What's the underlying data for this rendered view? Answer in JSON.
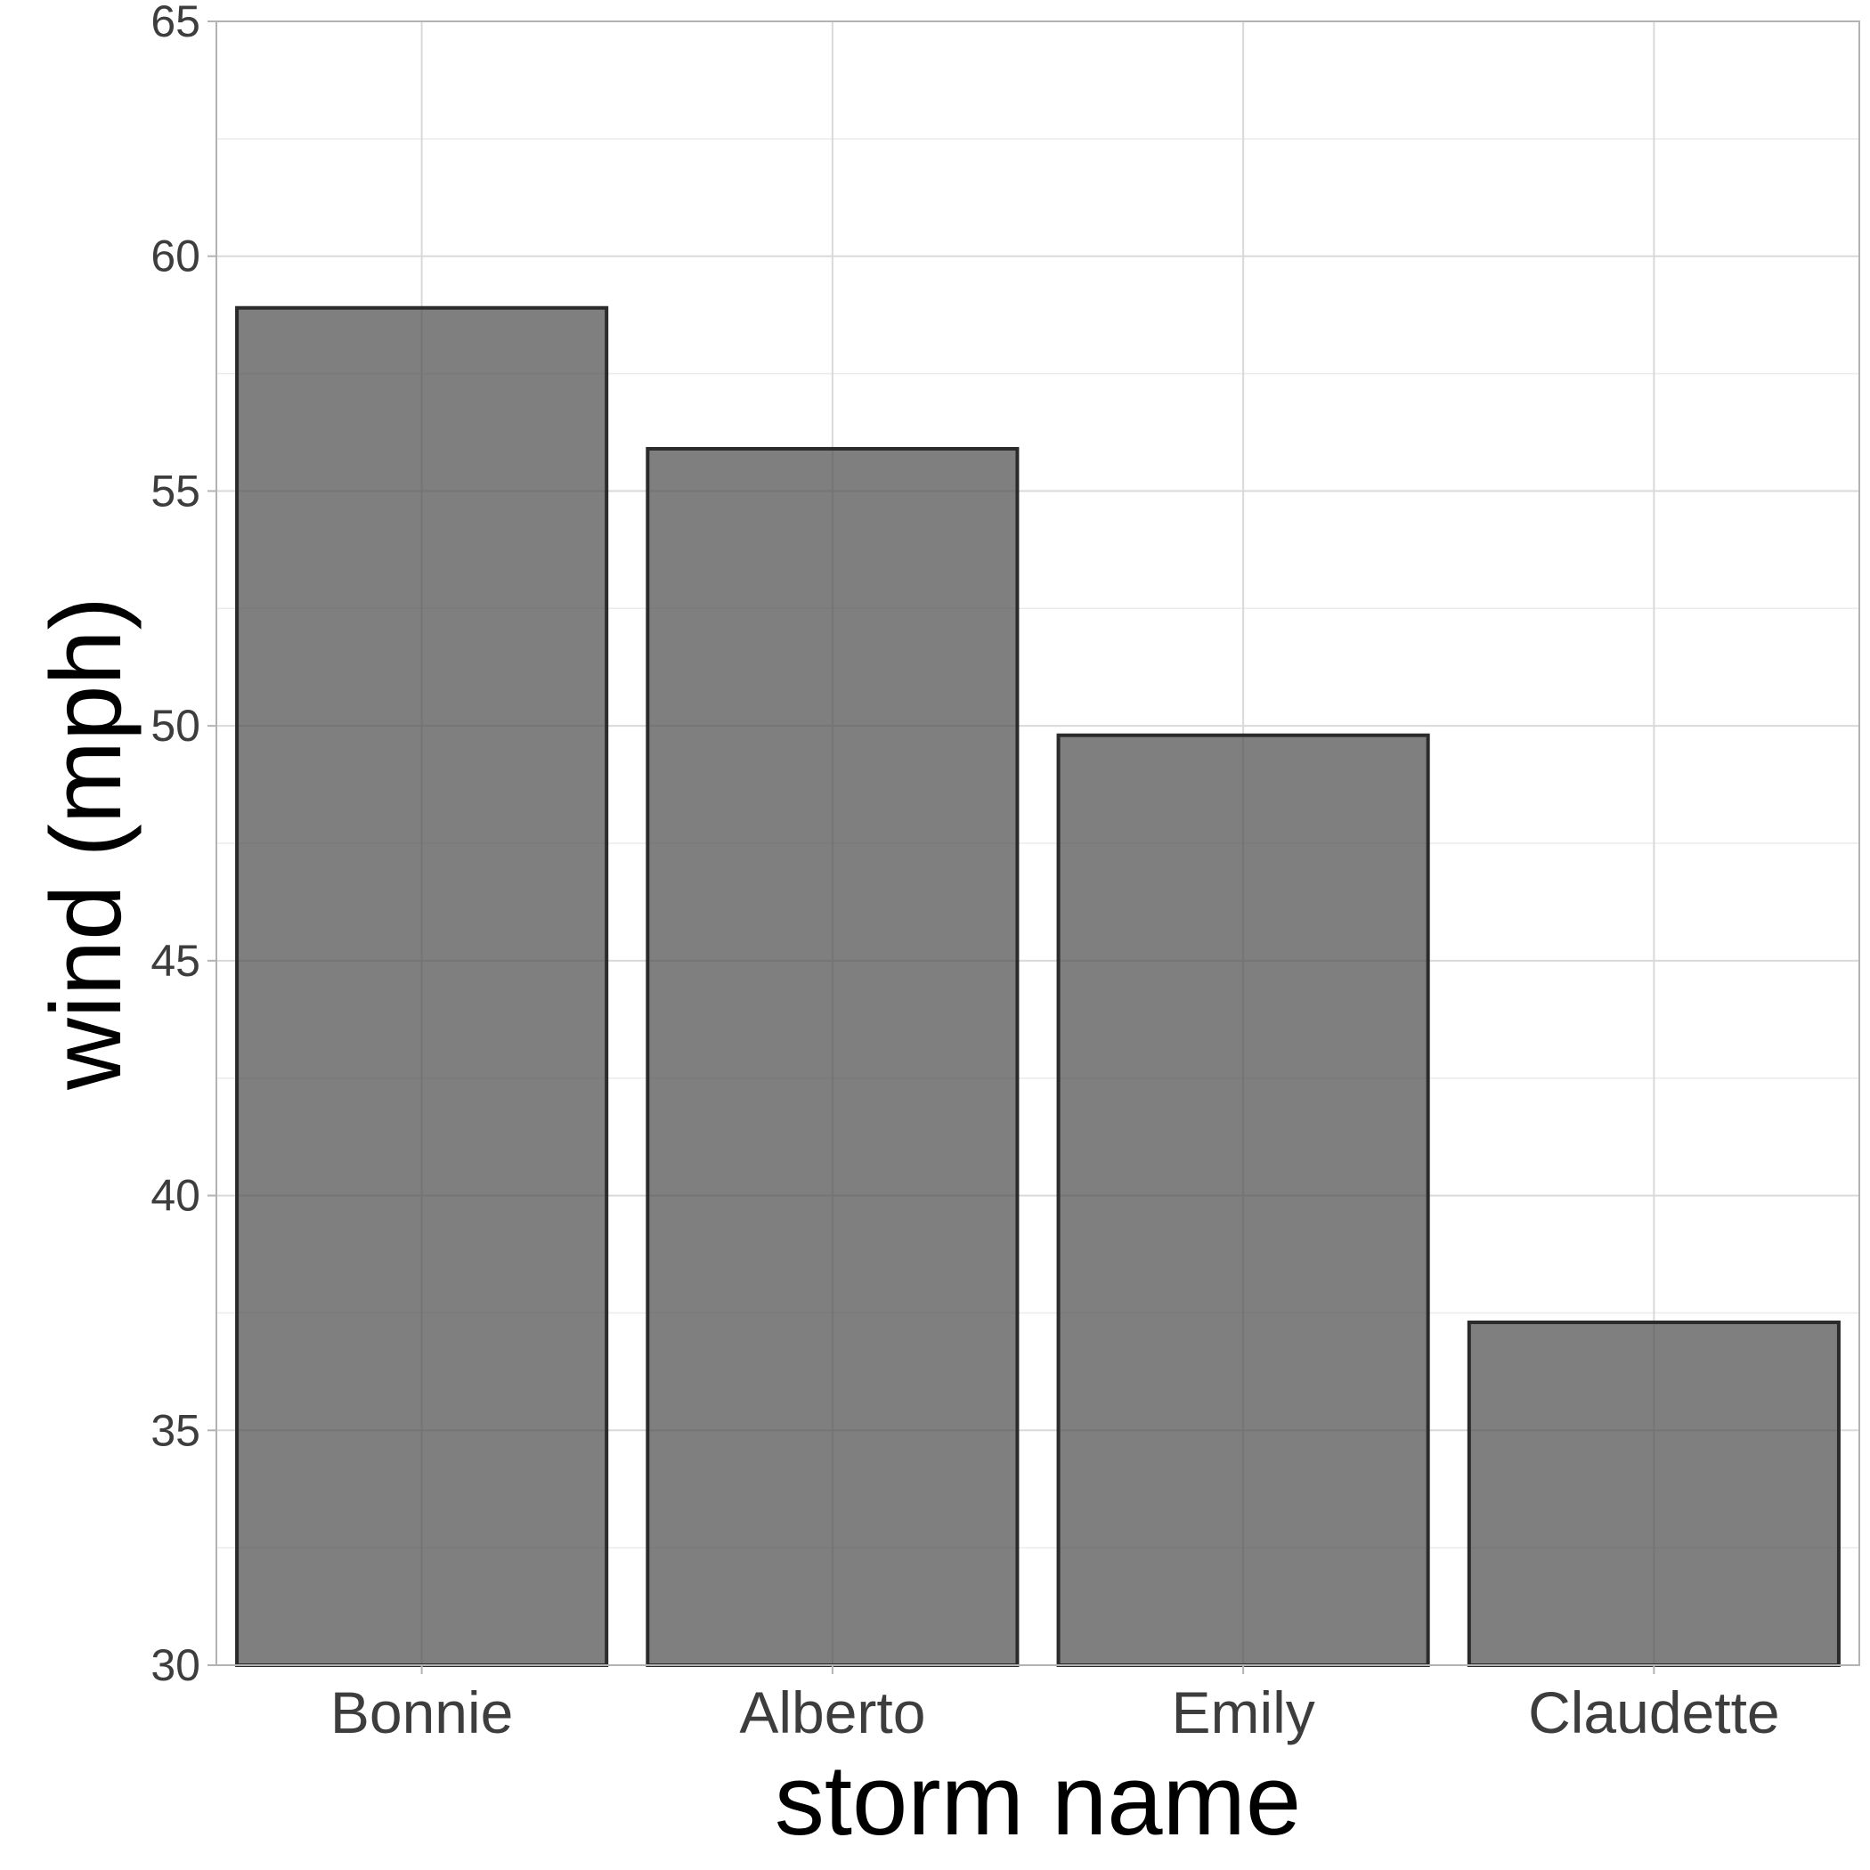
{
  "chart_data": {
    "type": "bar",
    "title": "",
    "xlabel": "storm name",
    "ylabel": "wind (mph)",
    "categories": [
      "Bonnie",
      "Alberto",
      "Emily",
      "Claudette"
    ],
    "values": [
      58.9,
      55.9,
      49.8,
      37.3
    ],
    "ylim": [
      30,
      65
    ],
    "yticks": [
      "30",
      "35",
      "40",
      "45",
      "50",
      "55",
      "60",
      "65"
    ],
    "grid": true,
    "legend": "none",
    "colors": {
      "bar_fill": "#7f7f7f",
      "bar_stroke": "#2b2b2b",
      "grid_major": "#d9d9d9",
      "grid_minor": "#ebebeb",
      "panel_border": "#b3b3b3"
    }
  }
}
